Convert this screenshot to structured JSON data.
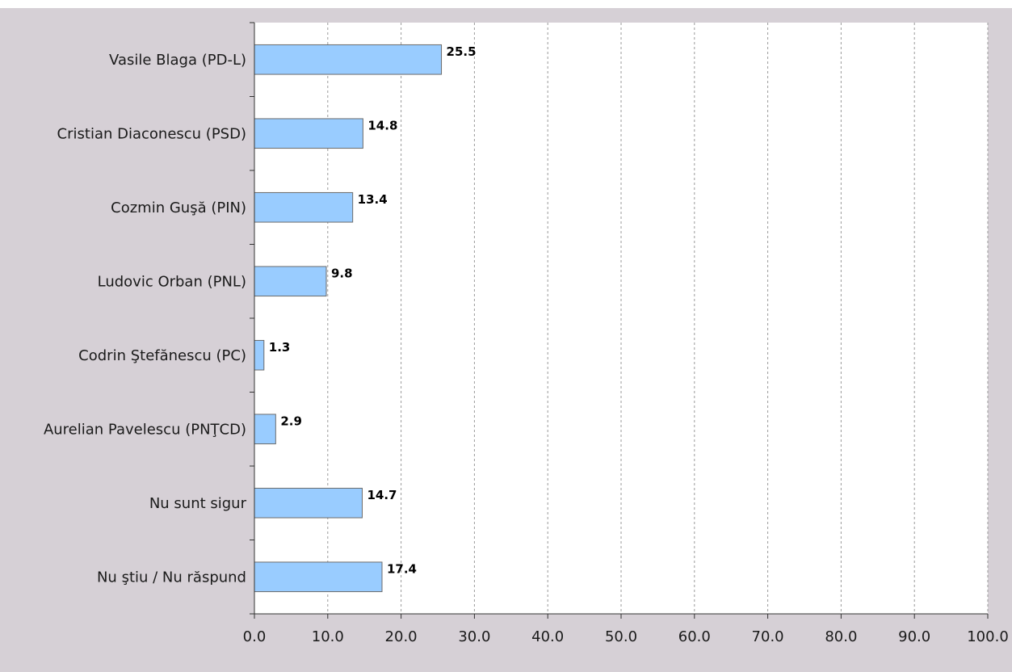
{
  "chart_data": {
    "type": "bar",
    "orientation": "horizontal",
    "categories": [
      "Vasile Blaga (PD-L)",
      "Cristian Diaconescu (PSD)",
      "Cozmin Guşă (PIN)",
      "Ludovic Orban (PNL)",
      "Codrin Ştefănescu (PC)",
      "Aurelian Pavelescu (PNŢCD)",
      "Nu sunt sigur",
      "Nu ştiu / Nu răspund"
    ],
    "values": [
      25.5,
      14.8,
      13.4,
      9.8,
      1.3,
      2.9,
      14.7,
      17.4
    ],
    "data_labels": [
      "25.5",
      "14.8",
      "13.4",
      "9.8",
      "1.3",
      "2.9",
      "14.7",
      "17.4"
    ],
    "x_ticks": [
      "0.0",
      "10.0",
      "20.0",
      "30.0",
      "40.0",
      "50.0",
      "60.0",
      "70.0",
      "80.0",
      "90.0",
      "100.0"
    ],
    "xlim": [
      0,
      100
    ],
    "title": "",
    "xlabel": "",
    "ylabel": "",
    "grid": "vertical dashed",
    "legend": "none",
    "colors": {
      "bar_fill": "#99ccff",
      "bar_stroke": "#6b6b6b",
      "frame": "#d6d0d6",
      "plot_bg": "#ffffff",
      "grid": "#9a9a9a",
      "axis": "#333333"
    }
  }
}
